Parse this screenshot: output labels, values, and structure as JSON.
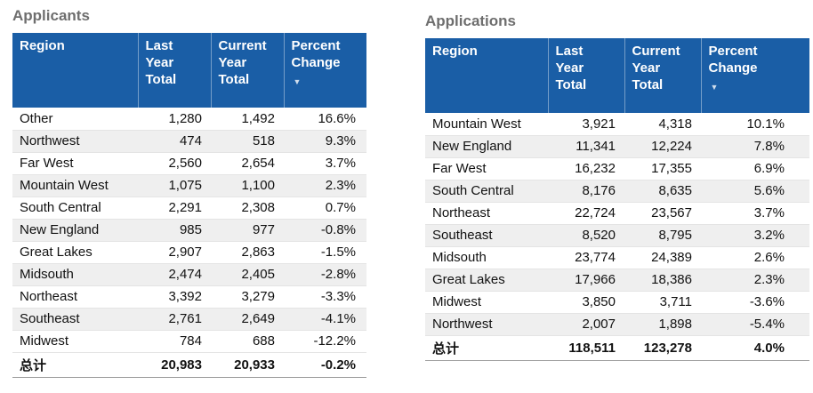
{
  "colors": {
    "header_bg": "#1A5EA6",
    "stripe": "#EFEFEF",
    "title_text": "#6E6E6E",
    "sort_arrow": "#CFDDEC",
    "row_border": "#E4E4E4",
    "total_border": "#9F9F9F"
  },
  "icons": {
    "sort_descending": "▼"
  },
  "tables": [
    {
      "title": "Applicants",
      "columns": [
        "Region",
        "Last Year Total",
        "Current Year Total",
        "Percent Change"
      ],
      "rows": [
        [
          "Other",
          "1,280",
          "1,492",
          "16.6%"
        ],
        [
          "Northwest",
          "474",
          "518",
          "9.3%"
        ],
        [
          "Far West",
          "2,560",
          "2,654",
          "3.7%"
        ],
        [
          "Mountain West",
          "1,075",
          "1,100",
          "2.3%"
        ],
        [
          "South Central",
          "2,291",
          "2,308",
          "0.7%"
        ],
        [
          "New England",
          "985",
          "977",
          "-0.8%"
        ],
        [
          "Great Lakes",
          "2,907",
          "2,863",
          "-1.5%"
        ],
        [
          "Midsouth",
          "2,474",
          "2,405",
          "-2.8%"
        ],
        [
          "Northeast",
          "3,392",
          "3,279",
          "-3.3%"
        ],
        [
          "Southeast",
          "2,761",
          "2,649",
          "-4.1%"
        ],
        [
          "Midwest",
          "784",
          "688",
          "-12.2%"
        ]
      ],
      "total_row": [
        "总计",
        "20,983",
        "20,933",
        "-0.2%"
      ]
    },
    {
      "title": "Applications",
      "columns": [
        "Region",
        "Last Year Total",
        "Current Year Total",
        "Percent Change"
      ],
      "rows": [
        [
          "Mountain West",
          "3,921",
          "4,318",
          "10.1%"
        ],
        [
          "New England",
          "11,341",
          "12,224",
          "7.8%"
        ],
        [
          "Far West",
          "16,232",
          "17,355",
          "6.9%"
        ],
        [
          "South Central",
          "8,176",
          "8,635",
          "5.6%"
        ],
        [
          "Northeast",
          "22,724",
          "23,567",
          "3.7%"
        ],
        [
          "Southeast",
          "8,520",
          "8,795",
          "3.2%"
        ],
        [
          "Midsouth",
          "23,774",
          "24,389",
          "2.6%"
        ],
        [
          "Great Lakes",
          "17,966",
          "18,386",
          "2.3%"
        ],
        [
          "Midwest",
          "3,850",
          "3,711",
          "-3.6%"
        ],
        [
          "Northwest",
          "2,007",
          "1,898",
          "-5.4%"
        ]
      ],
      "total_row": [
        "总计",
        "118,511",
        "123,278",
        "4.0%"
      ]
    }
  ],
  "chart_data": [
    {
      "type": "table",
      "title": "Applicants",
      "columns": [
        "Region",
        "Last Year Total",
        "Current Year Total",
        "Percent Change"
      ],
      "categories": [
        "Other",
        "Northwest",
        "Far West",
        "Mountain West",
        "South Central",
        "New England",
        "Great Lakes",
        "Midsouth",
        "Northeast",
        "Southeast",
        "Midwest"
      ],
      "series": [
        {
          "name": "Last Year Total",
          "values": [
            1280,
            474,
            2560,
            1075,
            2291,
            985,
            2907,
            2474,
            3392,
            2761,
            784
          ]
        },
        {
          "name": "Current Year Total",
          "values": [
            1492,
            518,
            2654,
            1100,
            2308,
            977,
            2863,
            2405,
            3279,
            2649,
            688
          ]
        },
        {
          "name": "Percent Change",
          "values": [
            16.6,
            9.3,
            3.7,
            2.3,
            0.7,
            -0.8,
            -1.5,
            -2.8,
            -3.3,
            -4.1,
            -12.2
          ]
        }
      ],
      "total": {
        "label": "总计",
        "last_year_total": 20983,
        "current_year_total": 20933,
        "percent_change": -0.2
      },
      "sort": "Percent Change descending"
    },
    {
      "type": "table",
      "title": "Applications",
      "columns": [
        "Region",
        "Last Year Total",
        "Current Year Total",
        "Percent Change"
      ],
      "categories": [
        "Mountain West",
        "New England",
        "Far West",
        "South Central",
        "Northeast",
        "Southeast",
        "Midsouth",
        "Great Lakes",
        "Midwest",
        "Northwest"
      ],
      "series": [
        {
          "name": "Last Year Total",
          "values": [
            3921,
            11341,
            16232,
            8176,
            22724,
            8520,
            23774,
            17966,
            3850,
            2007
          ]
        },
        {
          "name": "Current Year Total",
          "values": [
            4318,
            12224,
            17355,
            8635,
            23567,
            8795,
            24389,
            18386,
            3711,
            1898
          ]
        },
        {
          "name": "Percent Change",
          "values": [
            10.1,
            7.8,
            6.9,
            5.6,
            3.7,
            3.2,
            2.6,
            2.3,
            -3.6,
            -5.4
          ]
        }
      ],
      "total": {
        "label": "总计",
        "last_year_total": 118511,
        "current_year_total": 123278,
        "percent_change": 4.0
      },
      "sort": "Percent Change descending"
    }
  ]
}
